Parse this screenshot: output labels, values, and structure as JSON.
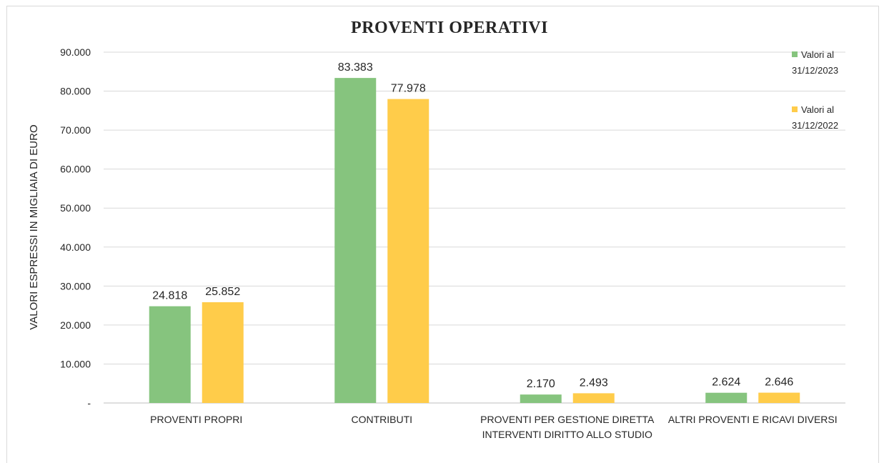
{
  "chart_data": {
    "type": "bar",
    "title": "PROVENTI OPERATIVI",
    "xlabel": "",
    "ylabel": "VALORI ESPRESSI IN MIGLIAIA DI EURO",
    "ylim": [
      0,
      90000
    ],
    "yticks": [
      0,
      10000,
      20000,
      30000,
      40000,
      50000,
      60000,
      70000,
      80000,
      90000
    ],
    "ytick_labels": [
      "-",
      "10.000",
      "20.000",
      "30.000",
      "40.000",
      "50.000",
      "60.000",
      "70.000",
      "80.000",
      "90.000"
    ],
    "grid": true,
    "legend_position": "right",
    "categories": [
      [
        "PROVENTI PROPRI"
      ],
      [
        "CONTRIBUTI"
      ],
      [
        "PROVENTI PER GESTIONE DIRETTA",
        "INTERVENTI DIRITTO ALLO STUDIO"
      ],
      [
        "ALTRI PROVENTI E RICAVI DIVERSI"
      ]
    ],
    "series": [
      {
        "name": "Valori al 31/12/2023",
        "legend_lines": [
          "Valori al",
          "31/12/2023"
        ],
        "color": "#86c47e",
        "values": [
          24818,
          83383,
          2170,
          2624
        ],
        "labels": [
          "24.818",
          "83.383",
          "2.170",
          "2.624"
        ]
      },
      {
        "name": "Valori al 31/12/2022",
        "legend_lines": [
          "Valori al",
          "31/12/2022"
        ],
        "color": "#ffcc4a",
        "values": [
          25852,
          77978,
          2493,
          2646
        ],
        "labels": [
          "25.852",
          "77.978",
          "2.493",
          "2.646"
        ]
      }
    ]
  }
}
